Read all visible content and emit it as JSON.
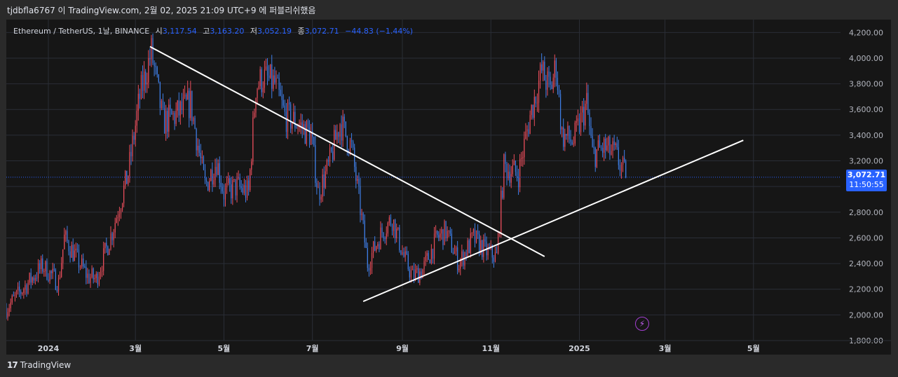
{
  "header": {
    "publish_line": "tjdbfla6767 이 TradingView.com, 2월 02, 2025 21:09 UTC+9 에 퍼블리쉬했음"
  },
  "legend": {
    "symbol": "Ethereum / TetherUS, 1날, BINANCE",
    "open_label": "시",
    "open_value": "3,117.54",
    "high_label": "고",
    "high_value": "3,163.20",
    "low_label": "저",
    "low_value": "3,052.19",
    "close_label": "종",
    "close_value": "3,072.71",
    "change": "−44.83 (−1.44%)"
  },
  "price_tag": {
    "price": "3,072.71",
    "countdown": "11:50:55"
  },
  "footer": {
    "brand": "TradingView",
    "mark": "17"
  },
  "colors": {
    "up": "#e84d5b",
    "down": "#3f7fe8",
    "accent": "#2962ff",
    "trendline": "#ffffff"
  },
  "chart_data": {
    "type": "candlestick",
    "title": "",
    "xlabel": "",
    "ylabel": "",
    "x_tick_labels": [
      "2024",
      "3월",
      "5월",
      "7월",
      "9월",
      "11월",
      "2025",
      "3월",
      "5월"
    ],
    "x_tick_dates": [
      "2024-01-01",
      "2024-03-01",
      "2024-05-01",
      "2024-07-01",
      "2024-09-01",
      "2024-11-01",
      "2025-01-01",
      "2025-03-01",
      "2025-05-01"
    ],
    "x_range": [
      "2023-12-03",
      "2025-06-30"
    ],
    "ylim": [
      1800,
      4300
    ],
    "y_ticks": [
      1800,
      2000,
      2200,
      2400,
      2600,
      2800,
      3000,
      3200,
      3400,
      3600,
      3800,
      4000,
      4200
    ],
    "y_tick_labels": [
      "1,800.00",
      "2,000.00",
      "2,200.00",
      "2,400.00",
      "2,600.00",
      "2,800.00",
      "3,000.00",
      "3,200.00",
      "3,400.00",
      "3,600.00",
      "3,800.00",
      "4,000.00",
      "4,200.00"
    ],
    "last_price": 3072.71,
    "anchors": [
      [
        "2023-12-03",
        2050
      ],
      [
        "2023-12-18",
        2250
      ],
      [
        "2023-12-28",
        2380
      ],
      [
        "2024-01-08",
        2250
      ],
      [
        "2024-01-12",
        2600
      ],
      [
        "2024-01-20",
        2450
      ],
      [
        "2024-01-28",
        2300
      ],
      [
        "2024-02-03",
        2280
      ],
      [
        "2024-02-14",
        2650
      ],
      [
        "2024-02-25",
        3100
      ],
      [
        "2024-03-04",
        3700
      ],
      [
        "2024-03-12",
        4050
      ],
      [
        "2024-03-20",
        3500
      ],
      [
        "2024-03-28",
        3550
      ],
      [
        "2024-04-08",
        3650
      ],
      [
        "2024-04-18",
        3000
      ],
      [
        "2024-04-26",
        3200
      ],
      [
        "2024-05-01",
        2950
      ],
      [
        "2024-05-10",
        3000
      ],
      [
        "2024-05-18",
        2950
      ],
      [
        "2024-05-23",
        3780
      ],
      [
        "2024-05-28",
        3850
      ],
      [
        "2024-06-05",
        3800
      ],
      [
        "2024-06-12",
        3550
      ],
      [
        "2024-06-20",
        3500
      ],
      [
        "2024-06-30",
        3400
      ],
      [
        "2024-07-05",
        2950
      ],
      [
        "2024-07-12",
        3150
      ],
      [
        "2024-07-20",
        3500
      ],
      [
        "2024-07-28",
        3300
      ],
      [
        "2024-08-04",
        2750
      ],
      [
        "2024-08-08",
        2400
      ],
      [
        "2024-08-18",
        2650
      ],
      [
        "2024-08-25",
        2750
      ],
      [
        "2024-09-02",
        2450
      ],
      [
        "2024-09-08",
        2300
      ],
      [
        "2024-09-15",
        2350
      ],
      [
        "2024-09-25",
        2600
      ],
      [
        "2024-10-01",
        2650
      ],
      [
        "2024-10-10",
        2400
      ],
      [
        "2024-10-20",
        2600
      ],
      [
        "2024-10-28",
        2500
      ],
      [
        "2024-11-05",
        2450
      ],
      [
        "2024-11-10",
        3150
      ],
      [
        "2024-11-20",
        3100
      ],
      [
        "2024-11-28",
        3550
      ],
      [
        "2024-12-06",
        3900
      ],
      [
        "2024-12-12",
        3750
      ],
      [
        "2024-12-16",
        3950
      ],
      [
        "2024-12-20",
        3400
      ],
      [
        "2024-12-28",
        3350
      ],
      [
        "2025-01-06",
        3650
      ],
      [
        "2025-01-10",
        3250
      ],
      [
        "2025-01-18",
        3300
      ],
      [
        "2025-01-26",
        3250
      ],
      [
        "2025-02-02",
        3072.71
      ]
    ],
    "trendlines": [
      {
        "name": "",
        "from": [
          "2024-03-11",
          4090
        ],
        "to": [
          "2024-12-08",
          2455
        ]
      },
      {
        "name": "",
        "from": [
          "2024-08-05",
          2105
        ],
        "to": [
          "2025-04-24",
          3360
        ]
      }
    ]
  }
}
